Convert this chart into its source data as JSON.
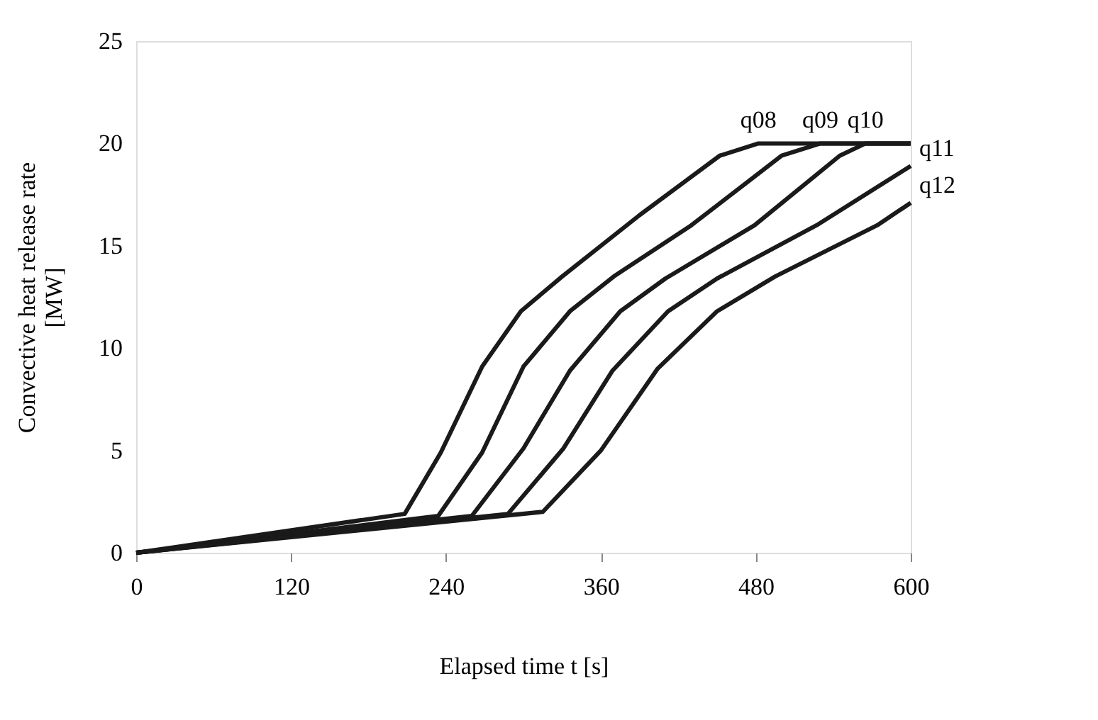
{
  "chart_data": {
    "type": "line",
    "xlabel": "Elapsed time t [s]",
    "ylabel": "Convective heat release rate\n[MW]",
    "xlim": [
      0,
      600
    ],
    "xticks": [
      0,
      120,
      240,
      360,
      480,
      600
    ],
    "ylim": [
      0,
      25
    ],
    "yticks": [
      0,
      5,
      10,
      15,
      20,
      25
    ],
    "grid": false,
    "legend": false,
    "marker": "none",
    "line_style": "solid",
    "series": [
      {
        "name": "q08",
        "color": "#1a1a1a",
        "x": [
          0,
          208,
          236,
          268,
          298,
          330,
          390,
          452,
          482,
          600
        ],
        "values": [
          0,
          1.9,
          4.9,
          9.1,
          11.8,
          13.5,
          16.5,
          19.4,
          20,
          20
        ]
      },
      {
        "name": "q09",
        "color": "#1a1a1a",
        "x": [
          0,
          234,
          268,
          300,
          336,
          370,
          430,
          500,
          530,
          600
        ],
        "values": [
          0,
          1.8,
          4.9,
          9.1,
          11.8,
          13.5,
          16,
          19.4,
          20,
          20
        ]
      },
      {
        "name": "q10",
        "color": "#1a1a1a",
        "x": [
          0,
          260,
          300,
          336,
          375,
          410,
          479,
          545,
          565,
          600
        ],
        "values": [
          0,
          1.8,
          5.1,
          8.9,
          11.8,
          13.4,
          16,
          19.4,
          20,
          20
        ]
      },
      {
        "name": "q11",
        "color": "#1a1a1a",
        "x": [
          0,
          288,
          331,
          369,
          412,
          450,
          527,
          600
        ],
        "values": [
          0,
          1.9,
          5.1,
          8.9,
          11.8,
          13.4,
          16,
          18.9
        ]
      },
      {
        "name": "q12",
        "color": "#1a1a1a",
        "x": [
          0,
          315,
          360,
          404,
          450,
          495,
          574,
          600
        ],
        "values": [
          0,
          2.0,
          5.0,
          9.0,
          11.8,
          13.5,
          16,
          17.1
        ]
      }
    ]
  }
}
